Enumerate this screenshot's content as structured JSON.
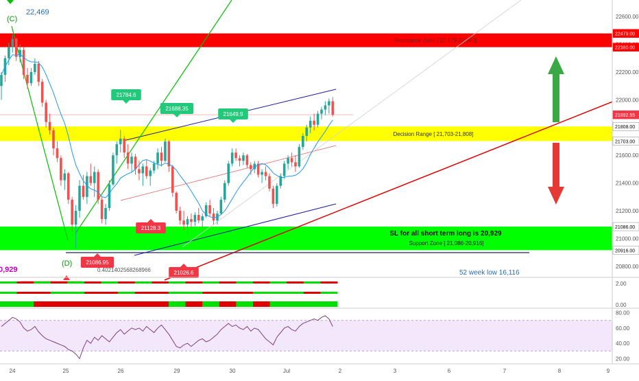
{
  "chart_data": {
    "type": "candlestick",
    "price_axis": {
      "range": [
        20720,
        22720
      ],
      "ticks": [
        "22600.00",
        "22400.00",
        "22200.00",
        "22000.00",
        "21800.00",
        "21600.00",
        "21400.00",
        "21200.00",
        "21000.00",
        "20800.00"
      ],
      "tags": [
        {
          "label": "22479.00",
          "color": "#ff0000"
        },
        {
          "label": "22380.00",
          "color": "#ff0000"
        },
        {
          "label": "21892.55",
          "color": "#f23645"
        },
        {
          "label": "21808.00",
          "color": "#ffffff"
        },
        {
          "label": "21703.00",
          "color": "#ffffff"
        },
        {
          "label": "21086.00",
          "color": "#ffffff"
        },
        {
          "label": "20916.00",
          "color": "#ffffff"
        }
      ]
    },
    "date_axis": {
      "ticks": [
        "24",
        "25",
        "26",
        "29",
        "30",
        "Jul",
        "2",
        "3",
        "6",
        "7",
        "8",
        "9"
      ]
    },
    "zones": [
      {
        "name": "Resistance Zone",
        "label": "Resistance Zone [ 22,479-22,380]",
        "low": 22380,
        "high": 22479,
        "color": "#ff0000"
      },
      {
        "name": "Decision Range",
        "label": "Decision Range [ 21,703-21,808]",
        "low": 21703,
        "high": 21808,
        "color": "#ffff00"
      },
      {
        "name": "Support Zone",
        "label": "Support Zone [ 21,086-20,916]",
        "low": 20916,
        "high": 21086,
        "color": "#00ff00"
      }
    ],
    "annotations": {
      "wave_c": "(C)",
      "wave_c_price": "22,469",
      "wave_d": "(D)",
      "left_value": "0,929",
      "sl_note": "SL for all short term long is 20,929",
      "week52": "52 week  low 16,116",
      "long_number": "0.4021402568268966",
      "price_tags": [
        {
          "label": "21784.6",
          "color": "#22c97a"
        },
        {
          "label": "21688.35",
          "color": "#22c97a"
        },
        {
          "label": "21649.9",
          "color": "#22c97a"
        },
        {
          "label": "21086.95",
          "color": "#f23645"
        },
        {
          "label": "21026.6",
          "color": "#f23645"
        },
        {
          "label": "21128.3",
          "color": "#f23645"
        }
      ]
    },
    "candles": [
      {
        "o": 22100,
        "h": 22200,
        "l": 22000,
        "c": 22180
      },
      {
        "o": 22180,
        "h": 22320,
        "l": 22130,
        "c": 22300
      },
      {
        "o": 22300,
        "h": 22410,
        "l": 22250,
        "c": 22380
      },
      {
        "o": 22380,
        "h": 22469,
        "l": 22340,
        "c": 22440
      },
      {
        "o": 22440,
        "h": 22450,
        "l": 22280,
        "c": 22310
      },
      {
        "o": 22310,
        "h": 22400,
        "l": 22270,
        "c": 22360
      },
      {
        "o": 22360,
        "h": 22380,
        "l": 22150,
        "c": 22180
      },
      {
        "o": 22180,
        "h": 22230,
        "l": 22080,
        "c": 22120
      },
      {
        "o": 22120,
        "h": 22230,
        "l": 22100,
        "c": 22200
      },
      {
        "o": 22200,
        "h": 22300,
        "l": 22180,
        "c": 22260
      },
      {
        "o": 22260,
        "h": 22280,
        "l": 22100,
        "c": 22130
      },
      {
        "o": 22130,
        "h": 22150,
        "l": 21950,
        "c": 21980
      },
      {
        "o": 21980,
        "h": 22000,
        "l": 21800,
        "c": 21840
      },
      {
        "o": 21840,
        "h": 21900,
        "l": 21750,
        "c": 21780
      },
      {
        "o": 21780,
        "h": 21800,
        "l": 21600,
        "c": 21650
      },
      {
        "o": 21650,
        "h": 21700,
        "l": 21550,
        "c": 21580
      },
      {
        "o": 21580,
        "h": 21600,
        "l": 21380,
        "c": 21420
      },
      {
        "o": 21420,
        "h": 21500,
        "l": 21350,
        "c": 21470
      },
      {
        "o": 21470,
        "h": 21480,
        "l": 21250,
        "c": 21280
      },
      {
        "o": 21280,
        "h": 21300,
        "l": 21050,
        "c": 21100
      },
      {
        "o": 21100,
        "h": 21240,
        "l": 20929,
        "c": 21200
      },
      {
        "o": 21200,
        "h": 21420,
        "l": 21150,
        "c": 21380
      },
      {
        "o": 21380,
        "h": 21460,
        "l": 21280,
        "c": 21300
      },
      {
        "o": 21300,
        "h": 21480,
        "l": 21250,
        "c": 21450
      },
      {
        "o": 21450,
        "h": 21540,
        "l": 21380,
        "c": 21400
      },
      {
        "o": 21400,
        "h": 21520,
        "l": 21300,
        "c": 21480
      },
      {
        "o": 21480,
        "h": 21500,
        "l": 21250,
        "c": 21280
      },
      {
        "o": 21280,
        "h": 21300,
        "l": 21110,
        "c": 21140
      },
      {
        "o": 21140,
        "h": 21250,
        "l": 21100,
        "c": 21220
      },
      {
        "o": 21220,
        "h": 21420,
        "l": 21200,
        "c": 21390
      },
      {
        "o": 21390,
        "h": 21620,
        "l": 21380,
        "c": 21600
      },
      {
        "o": 21600,
        "h": 21700,
        "l": 21540,
        "c": 21680
      },
      {
        "o": 21680,
        "h": 21784,
        "l": 21620,
        "c": 21720
      },
      {
        "o": 21720,
        "h": 21740,
        "l": 21580,
        "c": 21620
      },
      {
        "o": 21620,
        "h": 21680,
        "l": 21500,
        "c": 21540
      },
      {
        "o": 21540,
        "h": 21620,
        "l": 21480,
        "c": 21590
      },
      {
        "o": 21590,
        "h": 21610,
        "l": 21460,
        "c": 21500
      },
      {
        "o": 21500,
        "h": 21560,
        "l": 21420,
        "c": 21470
      },
      {
        "o": 21470,
        "h": 21540,
        "l": 21380,
        "c": 21520
      },
      {
        "o": 21520,
        "h": 21570,
        "l": 21430,
        "c": 21450
      },
      {
        "o": 21450,
        "h": 21510,
        "l": 21380,
        "c": 21490
      },
      {
        "o": 21490,
        "h": 21560,
        "l": 21470,
        "c": 21540
      },
      {
        "o": 21540,
        "h": 21650,
        "l": 21500,
        "c": 21620
      },
      {
        "o": 21620,
        "h": 21660,
        "l": 21520,
        "c": 21560
      },
      {
        "o": 21560,
        "h": 21720,
        "l": 21550,
        "c": 21700
      },
      {
        "o": 21700,
        "h": 21710,
        "l": 21480,
        "c": 21520
      },
      {
        "o": 21520,
        "h": 21530,
        "l": 21300,
        "c": 21330
      },
      {
        "o": 21330,
        "h": 21340,
        "l": 21180,
        "c": 21200
      },
      {
        "o": 21200,
        "h": 21230,
        "l": 21100,
        "c": 21130
      },
      {
        "o": 21130,
        "h": 21200,
        "l": 21060,
        "c": 21100
      },
      {
        "o": 21100,
        "h": 21160,
        "l": 21026,
        "c": 21140
      },
      {
        "o": 21140,
        "h": 21180,
        "l": 21080,
        "c": 21120
      },
      {
        "o": 21120,
        "h": 21190,
        "l": 21090,
        "c": 21170
      },
      {
        "o": 21170,
        "h": 21220,
        "l": 21110,
        "c": 21130
      },
      {
        "o": 21130,
        "h": 21180,
        "l": 21080,
        "c": 21160
      },
      {
        "o": 21160,
        "h": 21260,
        "l": 21150,
        "c": 21240
      },
      {
        "o": 21240,
        "h": 21280,
        "l": 21160,
        "c": 21180
      },
      {
        "o": 21180,
        "h": 21220,
        "l": 21100,
        "c": 21130
      },
      {
        "o": 21130,
        "h": 21200,
        "l": 21100,
        "c": 21180
      },
      {
        "o": 21180,
        "h": 21300,
        "l": 21170,
        "c": 21280
      },
      {
        "o": 21280,
        "h": 21420,
        "l": 21260,
        "c": 21400
      },
      {
        "o": 21400,
        "h": 21560,
        "l": 21380,
        "c": 21540
      },
      {
        "o": 21540,
        "h": 21650,
        "l": 21520,
        "c": 21620
      },
      {
        "o": 21620,
        "h": 21649,
        "l": 21560,
        "c": 21580
      },
      {
        "o": 21580,
        "h": 21600,
        "l": 21520,
        "c": 21560
      },
      {
        "o": 21560,
        "h": 21620,
        "l": 21530,
        "c": 21600
      },
      {
        "o": 21600,
        "h": 21610,
        "l": 21510,
        "c": 21530
      },
      {
        "o": 21530,
        "h": 21550,
        "l": 21460,
        "c": 21500
      },
      {
        "o": 21500,
        "h": 21560,
        "l": 21470,
        "c": 21540
      },
      {
        "o": 21540,
        "h": 21560,
        "l": 21440,
        "c": 21460
      },
      {
        "o": 21460,
        "h": 21500,
        "l": 21400,
        "c": 21480
      },
      {
        "o": 21480,
        "h": 21520,
        "l": 21420,
        "c": 21450
      },
      {
        "o": 21450,
        "h": 21470,
        "l": 21340,
        "c": 21360
      },
      {
        "o": 21360,
        "h": 21380,
        "l": 21220,
        "c": 21250
      },
      {
        "o": 21250,
        "h": 21400,
        "l": 21230,
        "c": 21380
      },
      {
        "o": 21380,
        "h": 21470,
        "l": 21360,
        "c": 21450
      },
      {
        "o": 21450,
        "h": 21560,
        "l": 21430,
        "c": 21540
      },
      {
        "o": 21540,
        "h": 21600,
        "l": 21500,
        "c": 21580
      },
      {
        "o": 21580,
        "h": 21620,
        "l": 21520,
        "c": 21550
      },
      {
        "o": 21550,
        "h": 21600,
        "l": 21480,
        "c": 21520
      },
      {
        "o": 21520,
        "h": 21680,
        "l": 21510,
        "c": 21660
      },
      {
        "o": 21660,
        "h": 21760,
        "l": 21640,
        "c": 21740
      },
      {
        "o": 21740,
        "h": 21820,
        "l": 21700,
        "c": 21800
      },
      {
        "o": 21800,
        "h": 21880,
        "l": 21760,
        "c": 21850
      },
      {
        "o": 21850,
        "h": 21900,
        "l": 21780,
        "c": 21820
      },
      {
        "o": 21820,
        "h": 21920,
        "l": 21800,
        "c": 21900
      },
      {
        "o": 21900,
        "h": 21950,
        "l": 21860,
        "c": 21930
      },
      {
        "o": 21930,
        "h": 21990,
        "l": 21890,
        "c": 21960
      },
      {
        "o": 21960,
        "h": 22010,
        "l": 21900,
        "c": 21990
      },
      {
        "o": 21990,
        "h": 22020,
        "l": 21880,
        "c": 21892.55
      }
    ],
    "rsi": {
      "ticks": [
        "80.00",
        "60.00",
        "40.00",
        "20.00"
      ],
      "range": [
        15,
        85
      ],
      "band": [
        30,
        70
      ],
      "values": [
        62,
        66,
        70,
        74,
        72,
        68,
        60,
        56,
        58,
        62,
        55,
        50,
        46,
        44,
        42,
        40,
        38,
        36,
        32,
        30,
        26,
        20,
        34,
        44,
        40,
        48,
        44,
        50,
        46,
        42,
        48,
        54,
        58,
        52,
        56,
        60,
        58,
        60,
        56,
        62,
        58,
        54,
        60,
        64,
        58,
        52,
        44,
        36,
        34,
        38,
        40,
        36,
        40,
        44,
        46,
        42,
        44,
        48,
        52,
        58,
        62,
        66,
        62,
        64,
        60,
        58,
        62,
        56,
        60,
        58,
        52,
        46,
        42,
        38,
        48,
        54,
        60,
        62,
        58,
        56,
        62,
        66,
        68,
        70,
        72,
        70,
        74,
        76,
        72,
        62
      ]
    },
    "osc_axis": {
      "ticks": [
        "2.00",
        "0.00"
      ]
    },
    "strip1": [
      "#00e000",
      "#e00000",
      "#00e000",
      "#e00000",
      "#00e000",
      "#e00000",
      "#00e000",
      "#e00000",
      "#00e000",
      "#e00000",
      "#00e000",
      "#e00000",
      "#00e000",
      "#e00000",
      "#00e000",
      "#e00000",
      "#00e000",
      "#e00000",
      "#00e000",
      "#e00000"
    ],
    "strip2": [
      "#00e000",
      "#e00000",
      "#e00000",
      "#00e000",
      "#00e000",
      "#e00000",
      "#e00000",
      "#00e000",
      "#e00000",
      "#e00000",
      "#00e000",
      "#00e000",
      "#e00000",
      "#e00000",
      "#e00000",
      "#00e000",
      "#00e000",
      "#00e000",
      "#e00000",
      "#00e000"
    ],
    "strip3": [
      "#00e000",
      "#00e000",
      "#e00000",
      "#e00000",
      "#e00000",
      "#e00000",
      "#e00000",
      "#e00000",
      "#e00000",
      "#e00000",
      "#00e000",
      "#e00000",
      "#00e000",
      "#e00000",
      "#00e000",
      "#e00000",
      "#00e000",
      "#00e000",
      "#00e000",
      "#00e000"
    ],
    "colors": {
      "up": "#26a69a",
      "down": "#ef5350",
      "ma": "#2196f3",
      "rsi": "#7e3f7e",
      "trend_red": "#e00000",
      "trend_green": "#00c000",
      "channel_blue": "#1a1aa0",
      "arrow_up": "#39a845",
      "arrow_down": "#e53935"
    },
    "grid": false
  }
}
